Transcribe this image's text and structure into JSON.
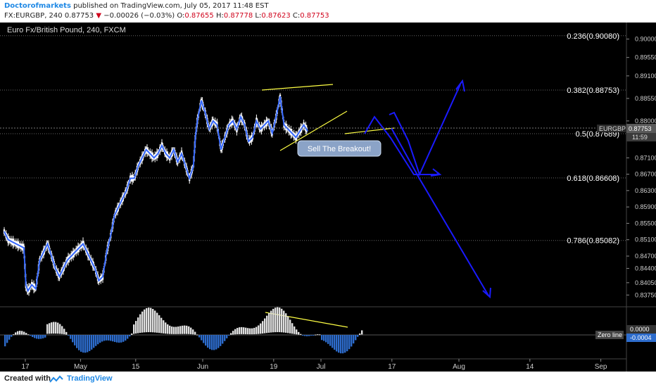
{
  "header": {
    "author": "Doctorofmarkets",
    "published": "published on TradingView.com, July 05, 2017 11:48 EST",
    "symbol_line": "FX:EURGBP, 240  0.87753",
    "change_arrow": "▼",
    "change": "−0.00026 (−0.03%)",
    "o_label": "O:",
    "o_value": "0.87655",
    "h_label": "H:",
    "h_value": "0.87778",
    "l_label": "L:",
    "l_value": "0.87623",
    "c_label": "C:",
    "c_value": "0.87753"
  },
  "footer": {
    "created_with": "Created with",
    "brand": "TradingView"
  },
  "colors": {
    "background": "#000000",
    "price_line": "#3366ff",
    "candles": "#ffffff",
    "fib_line": "#666666",
    "annotation_yellow": "#ffff44",
    "projection_arrows": "#1a1aff",
    "hist_positive": "#e0e0e0",
    "hist_negative": "#2d6ccc"
  },
  "chart_data": {
    "type": "line",
    "title": "Euro Fx/British Pound, 240, FXCM",
    "ylim": [
      0.836,
      0.903
    ],
    "xlabels": [
      {
        "label": "17",
        "x": 0
      },
      {
        "label": "May",
        "x": 14
      },
      {
        "label": "15",
        "x": 28
      },
      {
        "label": "Jun",
        "x": 45
      },
      {
        "label": "19",
        "x": 63
      },
      {
        "label": "Jul",
        "x": 75
      },
      {
        "label": "17",
        "x": 93
      },
      {
        "label": "Aug",
        "x": 110
      },
      {
        "label": "14",
        "x": 128
      },
      {
        "label": "Sep",
        "x": 146
      }
    ],
    "yticks": [
      "0.90000",
      "0.89550",
      "0.89100",
      "0.88550",
      "0.88000",
      "0.87550",
      "0.87100",
      "0.86700",
      "0.86300",
      "0.85900",
      "0.85500",
      "0.85100",
      "0.84700",
      "0.84400",
      "0.84050",
      "0.83750"
    ],
    "fib_levels": [
      {
        "label": "0.236(0.90080)",
        "value": 0.9008
      },
      {
        "label": "0.382(0.88753)",
        "value": 0.88753
      },
      {
        "label": "0.5(0.87689)",
        "value": 0.87689
      },
      {
        "label": "0.618(0.86608)",
        "value": 0.86608
      },
      {
        "label": "0.786(0.85082)",
        "value": 0.85082
      }
    ],
    "price_series": {
      "x": [
        0,
        1,
        2,
        3,
        4,
        5,
        5.5,
        6,
        7,
        8,
        9,
        10,
        11,
        12,
        13,
        14,
        15,
        16,
        17,
        18,
        19,
        20,
        21,
        22,
        23,
        24,
        25,
        26,
        27,
        28,
        29,
        30,
        31,
        32,
        33,
        34,
        35,
        36,
        37,
        38,
        39,
        40,
        41,
        42,
        43,
        44,
        45,
        46,
        47,
        48,
        48.5,
        49,
        50,
        51,
        52,
        53,
        54,
        55,
        56,
        57,
        58,
        59,
        60,
        61,
        62,
        63,
        64,
        65,
        66,
        67,
        68,
        69,
        70,
        71,
        72,
        73,
        74,
        75,
        76,
        77
      ],
      "y": [
        0.853,
        0.851,
        0.8505,
        0.85,
        0.8495,
        0.849,
        0.84,
        0.8385,
        0.84,
        0.839,
        0.846,
        0.848,
        0.85,
        0.847,
        0.844,
        0.842,
        0.844,
        0.846,
        0.847,
        0.848,
        0.849,
        0.85,
        0.848,
        0.846,
        0.844,
        0.841,
        0.842,
        0.848,
        0.852,
        0.857,
        0.859,
        0.861,
        0.863,
        0.866,
        0.866,
        0.869,
        0.871,
        0.873,
        0.872,
        0.871,
        0.872,
        0.874,
        0.872,
        0.871,
        0.873,
        0.87,
        0.872,
        0.869,
        0.866,
        0.869,
        0.876,
        0.88,
        0.885,
        0.882,
        0.878,
        0.88,
        0.879,
        0.873,
        0.876,
        0.879,
        0.88,
        0.878,
        0.881,
        0.879,
        0.875,
        0.876,
        0.88,
        0.878,
        0.879,
        0.88,
        0.877,
        0.881,
        0.886,
        0.879,
        0.878,
        0.877,
        0.876,
        0.8775,
        0.879,
        0.87753
      ]
    },
    "last_price": {
      "label": "0.87753",
      "symbol": "EURGBP",
      "countdown": "11:59"
    },
    "annotation": {
      "label": "Sell The Breakout!"
    },
    "oscillator": {
      "zero_label": "Zero line",
      "values": [
        "0.0000",
        "-0.0004"
      ]
    }
  }
}
